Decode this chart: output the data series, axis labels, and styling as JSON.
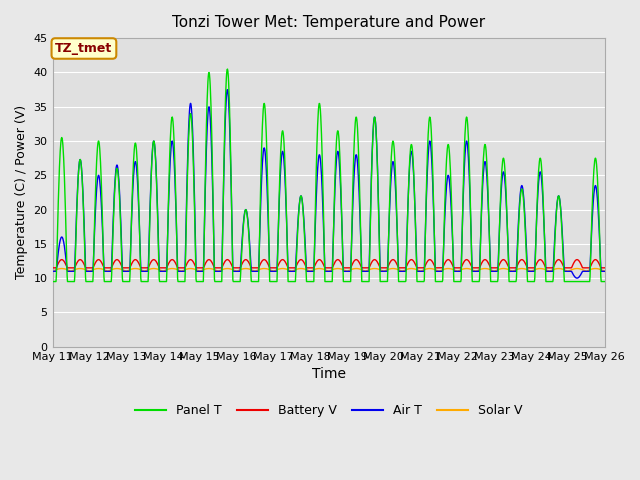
{
  "title": "Tonzi Tower Met: Temperature and Power",
  "xlabel": "Time",
  "ylabel": "Temperature (C) / Power (V)",
  "ylim": [
    0,
    45
  ],
  "yticks": [
    0,
    5,
    10,
    15,
    20,
    25,
    30,
    35,
    40,
    45
  ],
  "annotation": "TZ_tmet",
  "bg_outer": "#e8e8e8",
  "bg_inner": "#e0e0e0",
  "grid_color": "white",
  "colors": {
    "panel_t": "#00dd00",
    "battery_v": "#ee0000",
    "air_t": "#0000ee",
    "solar_v": "#ffaa00"
  },
  "legend_labels": [
    "Panel T",
    "Battery V",
    "Air T",
    "Solar V"
  ],
  "x_tick_labels": [
    "May 11",
    "May 12",
    "May 13",
    "May 14",
    "May 15",
    "May 16",
    "May 17",
    "May 18",
    "May 19",
    "May 20",
    "May 21",
    "May 22",
    "May 23",
    "May 24",
    "May 25",
    "May 26"
  ],
  "panel_peaks": [
    30.5,
    27.3,
    30.0,
    26.0,
    29.7,
    30.0,
    33.5,
    34.0,
    40.0,
    40.5,
    20.0,
    35.5,
    31.5,
    22.0,
    35.5,
    31.5,
    33.5,
    33.5,
    30.0,
    29.5,
    33.5,
    29.5,
    33.5,
    29.5,
    27.5,
    23.0,
    27.5,
    22.0,
    9.5,
    27.5
  ],
  "air_peaks": [
    16.0,
    27.3,
    25.0,
    26.5,
    27.0,
    30.0,
    30.0,
    35.5,
    35.0,
    37.5,
    20.0,
    29.0,
    28.5,
    22.0,
    28.0,
    28.5,
    28.0,
    33.5,
    27.0,
    28.5,
    30.0,
    25.0,
    30.0,
    27.0,
    25.5,
    23.5,
    25.5,
    22.0,
    10.0,
    23.5
  ],
  "n_days": 15,
  "pts_per_day": 96,
  "base_panel": 9.5,
  "base_air": 11.0,
  "base_battery": 11.5,
  "battery_bump": 1.2,
  "solar_base": 11.0,
  "solar_amp": 0.4
}
